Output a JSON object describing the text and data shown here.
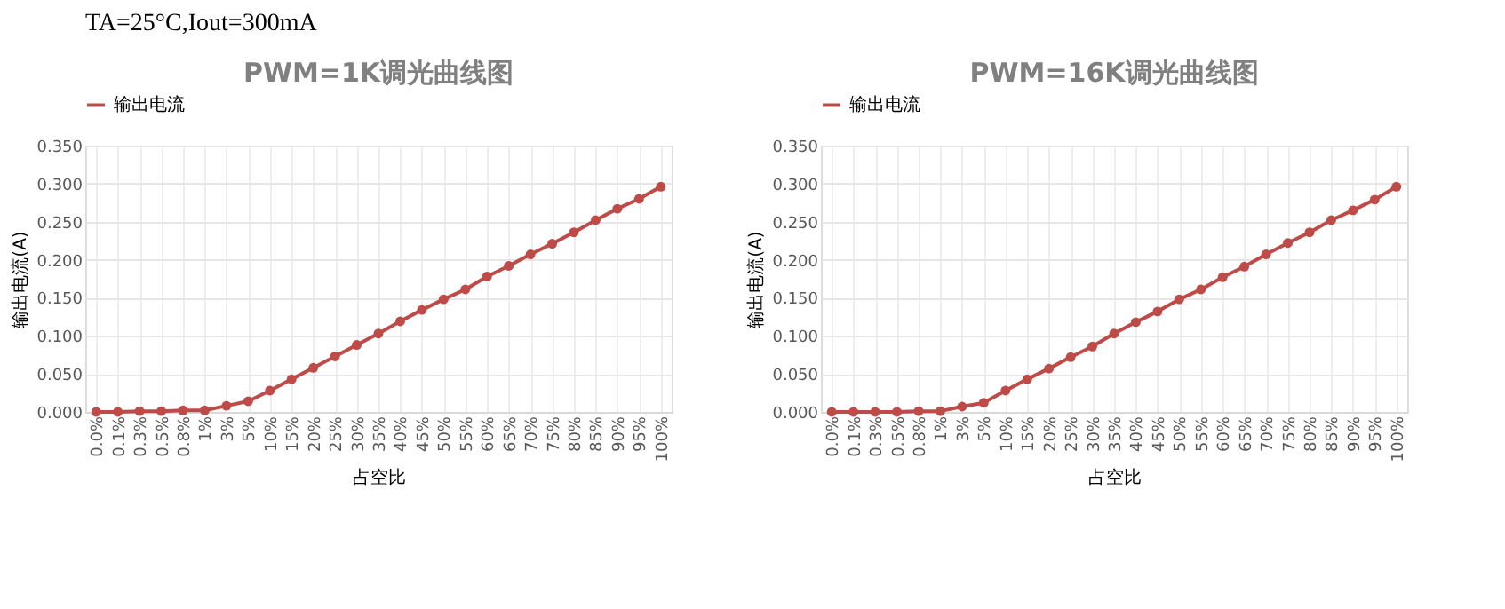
{
  "chart_data": [
    {
      "type": "line",
      "title": "PWM=1K调光曲线图",
      "xlabel": "占空比",
      "ylabel": "输出电流(A)",
      "annotations": [
        "TA=25°C,Iout=300mA"
      ],
      "categories": [
        "0.0%",
        "0.1%",
        "0.3%",
        "0.5%",
        "0.8%",
        "1%",
        "3%",
        "5%",
        "10%",
        "15%",
        "20%",
        "25%",
        "30%",
        "35%",
        "40%",
        "45%",
        "50%",
        "55%",
        "60%",
        "65%",
        "70%",
        "75%",
        "80%",
        "85%",
        "90%",
        "95%",
        "100%"
      ],
      "series": [
        {
          "name": "输出电流",
          "color": "#be4b48",
          "values": [
            0.0,
            0.0,
            0.001,
            0.001,
            0.002,
            0.002,
            0.008,
            0.014,
            0.028,
            0.043,
            0.058,
            0.073,
            0.088,
            0.103,
            0.119,
            0.134,
            0.148,
            0.161,
            0.178,
            0.192,
            0.207,
            0.221,
            0.236,
            0.252,
            0.267,
            0.28,
            0.296
          ]
        }
      ],
      "ylim": [
        0,
        0.35
      ],
      "yticks": [
        {
          "value": 0,
          "label": "0.000"
        },
        {
          "value": 0.05,
          "label": "0.050"
        },
        {
          "value": 0.1,
          "label": "0.100"
        },
        {
          "value": 0.15,
          "label": "0.150"
        },
        {
          "value": 0.2,
          "label": "0.200"
        },
        {
          "value": 0.25,
          "label": "0.250"
        },
        {
          "value": 0.3,
          "label": "0.300"
        },
        {
          "value": 0.35,
          "label": "0.350"
        }
      ],
      "grid": true,
      "legend": "top",
      "marker": "circle",
      "line_style": "solid"
    },
    {
      "type": "line",
      "title": "PWM=16K调光曲线图",
      "xlabel": "占空比",
      "ylabel": "输出电流(A)",
      "categories": [
        "0.0%",
        "0.1%",
        "0.3%",
        "0.5%",
        "0.8%",
        "1%",
        "3%",
        "5%",
        "10%",
        "15%",
        "20%",
        "25%",
        "30%",
        "35%",
        "40%",
        "45%",
        "50%",
        "55%",
        "60%",
        "65%",
        "70%",
        "75%",
        "80%",
        "85%",
        "90%",
        "95%",
        "100%"
      ],
      "series": [
        {
          "name": "输出电流",
          "color": "#be4b48",
          "values": [
            0.0,
            0.0,
            0.0,
            0.0,
            0.001,
            0.001,
            0.007,
            0.012,
            0.028,
            0.043,
            0.057,
            0.072,
            0.086,
            0.103,
            0.118,
            0.132,
            0.148,
            0.161,
            0.177,
            0.191,
            0.207,
            0.222,
            0.236,
            0.252,
            0.265,
            0.279,
            0.296
          ]
        }
      ],
      "ylim": [
        0,
        0.35
      ],
      "yticks": [
        {
          "value": 0,
          "label": "0.000"
        },
        {
          "value": 0.05,
          "label": "0.050"
        },
        {
          "value": 0.1,
          "label": "0.100"
        },
        {
          "value": 0.15,
          "label": "0.150"
        },
        {
          "value": 0.2,
          "label": "0.200"
        },
        {
          "value": 0.25,
          "label": "0.250"
        },
        {
          "value": 0.3,
          "label": "0.300"
        },
        {
          "value": 0.35,
          "label": "0.350"
        }
      ],
      "grid": true,
      "legend": "top",
      "marker": "circle",
      "line_style": "solid"
    }
  ]
}
